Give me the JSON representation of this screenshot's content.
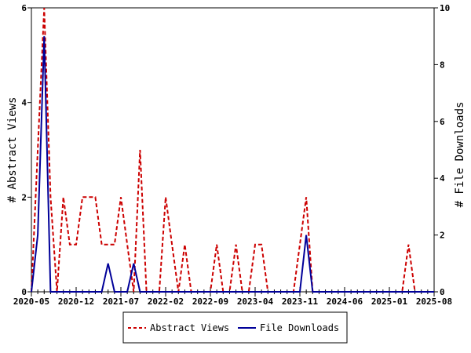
{
  "chart_data": {
    "type": "line",
    "title": "",
    "xlabel": "",
    "ylabel_left": "# Abstract Views",
    "ylabel_right": "# File Downloads",
    "x_range": [
      "2020-05",
      "2025-08"
    ],
    "x_ticks": [
      "2020-05",
      "2020-12",
      "2021-07",
      "2022-02",
      "2022-09",
      "2023-04",
      "2023-11",
      "2024-06",
      "2025-01",
      "2025-08"
    ],
    "ylim_left": [
      0,
      6
    ],
    "yticks_left": [
      "0",
      "2",
      "4",
      "6"
    ],
    "ylim_right": [
      0,
      10
    ],
    "yticks_right": [
      "0",
      "2",
      "4",
      "6",
      "8",
      "10"
    ],
    "grid": false,
    "legend_position": "bottom-center",
    "months": [
      "2020-05",
      "2020-06",
      "2020-07",
      "2020-08",
      "2020-09",
      "2020-10",
      "2020-11",
      "2020-12",
      "2021-01",
      "2021-02",
      "2021-03",
      "2021-04",
      "2021-05",
      "2021-06",
      "2021-07",
      "2021-08",
      "2021-09",
      "2021-10",
      "2021-11",
      "2021-12",
      "2022-01",
      "2022-02",
      "2022-03",
      "2022-04",
      "2022-05",
      "2022-06",
      "2022-07",
      "2022-08",
      "2022-09",
      "2022-10",
      "2022-11",
      "2022-12",
      "2023-01",
      "2023-02",
      "2023-03",
      "2023-04",
      "2023-05",
      "2023-06",
      "2023-07",
      "2023-08",
      "2023-09",
      "2023-10",
      "2023-11",
      "2023-12",
      "2024-01",
      "2024-02",
      "2024-03",
      "2024-04",
      "2024-05",
      "2024-06",
      "2024-07",
      "2024-08",
      "2024-09",
      "2024-10",
      "2024-11",
      "2024-12",
      "2025-01",
      "2025-02",
      "2025-03",
      "2025-04",
      "2025-05",
      "2025-06",
      "2025-07",
      "2025-08"
    ],
    "series": [
      {
        "name": "Abstract Views",
        "axis": "left",
        "color": "#cc0000",
        "dash": true,
        "values": [
          0,
          3,
          6,
          2,
          0,
          2,
          1,
          1,
          2,
          2,
          2,
          1,
          1,
          1,
          2,
          1,
          0,
          3,
          0,
          0,
          0,
          2,
          1,
          0,
          1,
          0,
          0,
          0,
          0,
          1,
          0,
          0,
          1,
          0,
          0,
          1,
          1,
          0,
          0,
          0,
          0,
          0,
          1,
          2,
          0,
          0,
          0,
          0,
          0,
          0,
          0,
          0,
          0,
          0,
          0,
          0,
          0,
          0,
          0,
          1,
          0,
          0,
          0,
          0
        ]
      },
      {
        "name": "File Downloads",
        "axis": "right",
        "color": "#000099",
        "dash": false,
        "values": [
          0,
          2,
          9,
          0,
          0,
          0,
          0,
          0,
          0,
          0,
          0,
          0,
          1,
          0,
          0,
          0,
          1,
          0,
          0,
          0,
          0,
          0,
          0,
          0,
          0,
          0,
          0,
          0,
          0,
          0,
          0,
          0,
          0,
          0,
          0,
          0,
          0,
          0,
          0,
          0,
          0,
          0,
          0,
          2,
          0,
          0,
          0,
          0,
          0,
          0,
          0,
          0,
          0,
          0,
          0,
          0,
          0,
          0,
          0,
          0,
          0,
          0,
          0,
          0
        ]
      }
    ]
  }
}
